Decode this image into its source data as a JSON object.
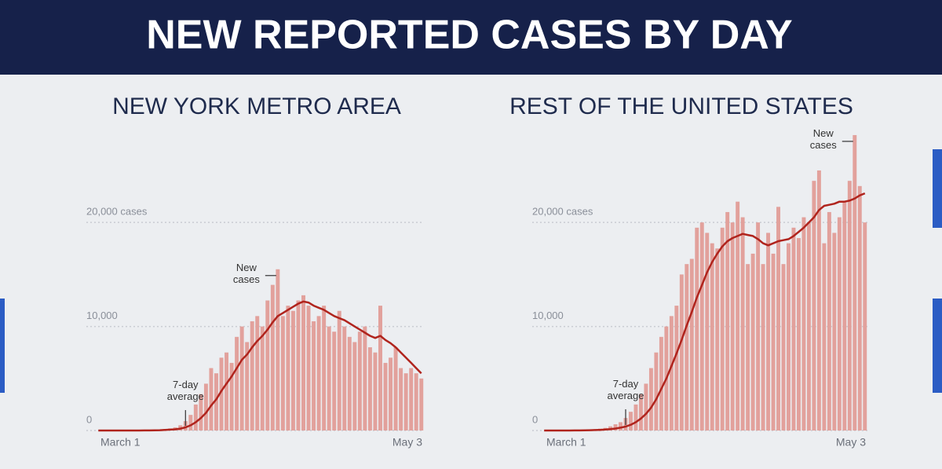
{
  "header": {
    "title": "NEW REPORTED CASES BY DAY"
  },
  "chart_data": [
    {
      "type": "bar",
      "title": "NEW YORK METRO AREA",
      "categories": [
        "March 1",
        null,
        null,
        null,
        null,
        null,
        null,
        null,
        null,
        null,
        null,
        null,
        null,
        null,
        null,
        null,
        null,
        null,
        null,
        null,
        null,
        null,
        null,
        null,
        null,
        null,
        null,
        null,
        null,
        null,
        null,
        null,
        null,
        null,
        null,
        null,
        null,
        null,
        null,
        null,
        null,
        null,
        null,
        null,
        null,
        null,
        null,
        null,
        null,
        null,
        null,
        null,
        null,
        null,
        null,
        null,
        null,
        null,
        null,
        null,
        null,
        null,
        null,
        "May 3"
      ],
      "series": [
        {
          "name": "New cases",
          "color": "#e2a19c",
          "values": [
            0,
            0,
            0,
            0,
            0,
            0,
            2,
            5,
            10,
            20,
            40,
            60,
            100,
            150,
            200,
            300,
            500,
            900,
            1500,
            2500,
            3500,
            4500,
            6000,
            5500,
            7000,
            7500,
            6500,
            9000,
            10000,
            8500,
            10500,
            11000,
            10000,
            12500,
            14000,
            15500,
            11000,
            12000,
            11500,
            12500,
            13000,
            12000,
            10500,
            11000,
            12000,
            10000,
            9500,
            11500,
            10000,
            9000,
            8500,
            9500,
            10000,
            8000,
            7500,
            12000,
            6500,
            7000,
            8000,
            6000,
            5500,
            6000,
            5500,
            5000
          ]
        },
        {
          "name": "7-day average",
          "type": "line",
          "color": "#b0241d",
          "values": [
            0,
            0,
            0,
            0,
            0,
            0,
            0,
            1,
            3,
            5,
            10,
            20,
            30,
            50,
            80,
            110,
            180,
            300,
            500,
            800,
            1200,
            1700,
            2400,
            3000,
            3800,
            4500,
            5200,
            6000,
            6800,
            7300,
            8000,
            8600,
            9100,
            9700,
            10400,
            11000,
            11300,
            11600,
            11900,
            12200,
            12400,
            12300,
            12000,
            11800,
            11600,
            11300,
            11000,
            10800,
            10600,
            10300,
            10000,
            9700,
            9400,
            9100,
            8900,
            9100,
            8700,
            8400,
            8000,
            7500,
            7000,
            6500,
            6000,
            5500
          ]
        }
      ],
      "ylim": [
        0,
        29000
      ],
      "yticks": [
        0,
        {
          "value": 10000,
          "label": "10,000"
        },
        {
          "value": 20000,
          "label": "20,000 cases"
        }
      ],
      "grid": true
    },
    {
      "type": "bar",
      "title": "REST OF THE UNITED STATES",
      "categories": [
        "March 1",
        null,
        null,
        null,
        null,
        null,
        null,
        null,
        null,
        null,
        null,
        null,
        null,
        null,
        null,
        null,
        null,
        null,
        null,
        null,
        null,
        null,
        null,
        null,
        null,
        null,
        null,
        null,
        null,
        null,
        null,
        null,
        null,
        null,
        null,
        null,
        null,
        null,
        null,
        null,
        null,
        null,
        null,
        null,
        null,
        null,
        null,
        null,
        null,
        null,
        null,
        null,
        null,
        null,
        null,
        null,
        null,
        null,
        null,
        null,
        null,
        null,
        null,
        "May 3"
      ],
      "series": [
        {
          "name": "New cases",
          "color": "#e2a19c",
          "values": [
            0,
            0,
            0,
            0,
            5,
            10,
            20,
            30,
            50,
            80,
            120,
            180,
            250,
            400,
            600,
            800,
            1200,
            1800,
            2500,
            3500,
            4500,
            6000,
            7500,
            9000,
            10000,
            11000,
            12000,
            15000,
            16000,
            16500,
            19500,
            20000,
            19000,
            18000,
            17500,
            19500,
            21000,
            20000,
            22000,
            20500,
            16000,
            17000,
            20000,
            16000,
            19000,
            17000,
            21500,
            16000,
            18000,
            19500,
            18500,
            20500,
            20000,
            24000,
            25000,
            18000,
            21000,
            19000,
            20500,
            22000,
            24000,
            28400,
            23500,
            20000
          ]
        },
        {
          "name": "7-day average",
          "type": "line",
          "color": "#b0241d",
          "values": [
            0,
            0,
            0,
            0,
            1,
            3,
            6,
            10,
            17,
            27,
            42,
            63,
            90,
            130,
            190,
            270,
            380,
            550,
            800,
            1150,
            1600,
            2200,
            3000,
            4000,
            5000,
            6200,
            7400,
            8700,
            10100,
            11400,
            12800,
            14000,
            15200,
            16200,
            17000,
            17700,
            18200,
            18500,
            18700,
            18900,
            18800,
            18700,
            18400,
            18000,
            17800,
            18000,
            18200,
            18300,
            18400,
            18700,
            19100,
            19500,
            20000,
            20500,
            21200,
            21600,
            21700,
            21800,
            22000,
            22000,
            22100,
            22300,
            22600,
            22800
          ]
        }
      ],
      "ylim": [
        0,
        29000
      ],
      "yticks": [
        0,
        {
          "value": 10000,
          "label": "10,000"
        },
        {
          "value": 20000,
          "label": "20,000 cases"
        }
      ],
      "grid": true
    }
  ]
}
